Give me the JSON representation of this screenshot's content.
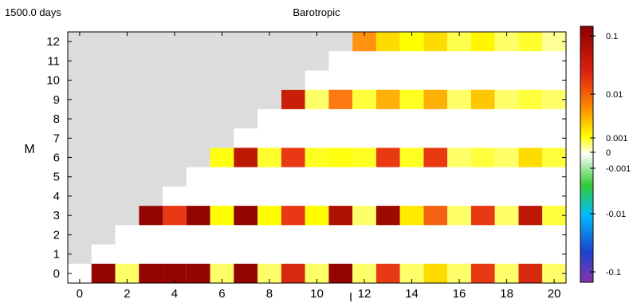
{
  "header": {
    "time_label": "1500.0 days",
    "title": "Barotropic"
  },
  "chart_data": {
    "type": "heatmap",
    "title": "Barotropic",
    "xlabel": "l",
    "ylabel": "M",
    "x_range": [
      -0.5,
      20.5
    ],
    "y_range": [
      -0.5,
      12.5
    ],
    "x_ticks": [
      0,
      2,
      4,
      6,
      8,
      10,
      12,
      14,
      16,
      18,
      20
    ],
    "y_ticks": [
      0,
      1,
      2,
      3,
      4,
      5,
      6,
      7,
      8,
      9,
      10,
      11,
      12
    ],
    "colorbar": {
      "scale": "symmetric-log",
      "ticks": [
        "0.1",
        "0.01",
        "0.001",
        "0",
        "-0.001",
        "-0.01",
        "-0.1"
      ],
      "tick_values": [
        0.1,
        0.01,
        0.001,
        0,
        -0.001,
        -0.01,
        -0.1
      ],
      "colors_top_to_bottom": [
        "#8b0000",
        "#e02010",
        "#ff8c00",
        "#ffff00",
        "#ffffff",
        "#33cc33",
        "#00bbff",
        "#1a44cc",
        "#8833aa"
      ]
    },
    "masked_region": {
      "description": "grey triangle (undefined modes, l < M)",
      "color": "#dcdcdc"
    },
    "rows": [
      {
        "m": 0,
        "values": [
          0,
          0.08,
          0.0002,
          0.08,
          0.08,
          0.08,
          0.0002,
          0.08,
          0.0002,
          0.02,
          0.0002,
          0.08,
          0.0002,
          0.015,
          0.0002,
          0.002,
          0.0002,
          0.015,
          0.0002,
          0.02,
          0.0002
        ]
      },
      {
        "m": 3,
        "values": [
          null,
          null,
          null,
          0.08,
          0.015,
          0.08,
          0.001,
          0.08,
          0.001,
          0.015,
          0.001,
          0.04,
          0.0002,
          0.06,
          0.0015,
          0.01,
          0.0002,
          0.015,
          0.0002,
          0.03,
          0.0004
        ]
      },
      {
        "m": 6,
        "values": [
          null,
          null,
          null,
          null,
          null,
          null,
          0.0008,
          0.03,
          0.0005,
          0.015,
          0.0006,
          0.0008,
          0.0006,
          0.015,
          0.0006,
          0.015,
          0.0002,
          0.0004,
          0.0002,
          0.002,
          0.0004
        ]
      },
      {
        "m": 9,
        "values": [
          null,
          null,
          null,
          null,
          null,
          null,
          null,
          null,
          null,
          0.025,
          0.0002,
          0.008,
          0.0004,
          0.004,
          0.0006,
          0.004,
          0.0002,
          0.003,
          0.0002,
          0.0004,
          0.0002
        ]
      },
      {
        "m": 12,
        "values": [
          null,
          null,
          null,
          null,
          null,
          null,
          null,
          null,
          null,
          null,
          null,
          null,
          0.006,
          0.002,
          0.001,
          0.002,
          0.0003,
          0.0012,
          0.0002,
          0.0005,
          0.0001
        ]
      }
    ]
  }
}
